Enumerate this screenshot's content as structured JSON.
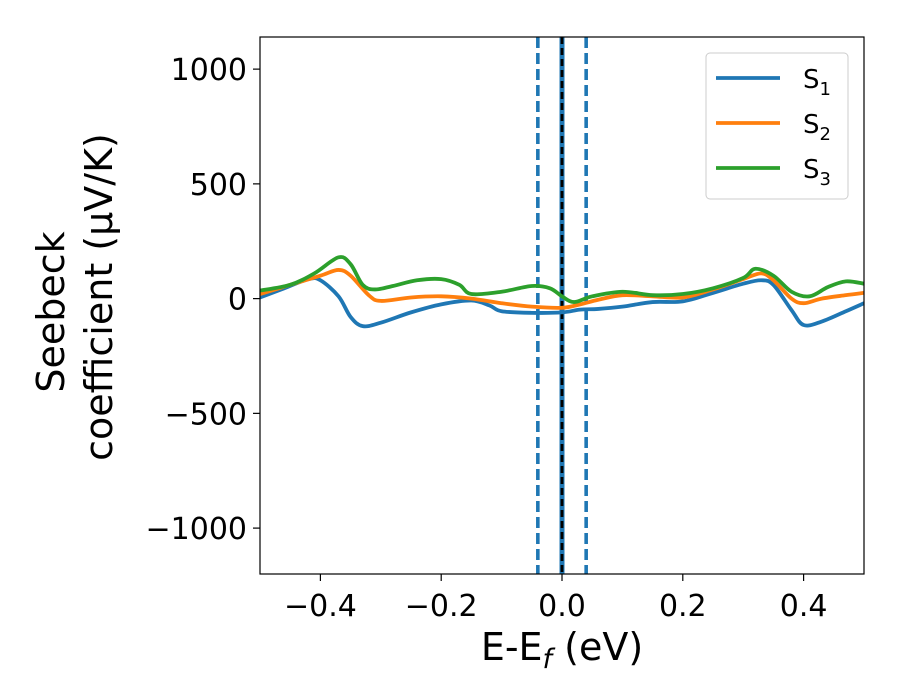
{
  "chart_data": {
    "type": "line",
    "xlabel": "E-E_f (eV)",
    "xlabel_parts": {
      "main": "E-E",
      "sub": "f",
      "unit": " (eV)"
    },
    "ylabel_lines": [
      "Seebeck",
      "coefficient  (μV/K)"
    ],
    "xlim": [
      -0.5,
      0.5
    ],
    "ylim": [
      -1200,
      1140
    ],
    "xticks": [
      -0.4,
      -0.2,
      0.0,
      0.2,
      0.4
    ],
    "xtick_labels": [
      "−0.4",
      "−0.2",
      "0.0",
      "0.2",
      "0.4"
    ],
    "yticks": [
      1000,
      500,
      0,
      -500,
      -1000
    ],
    "ytick_labels": [
      "1000",
      "500",
      "0",
      "−500",
      "−1000"
    ],
    "grid": false,
    "legend_position": "top-right",
    "vlines": [
      {
        "x": -0.04,
        "style": "dashed",
        "color": "#1f77b4"
      },
      {
        "x": 0.04,
        "style": "dashed",
        "color": "#1f77b4"
      },
      {
        "x": 0.0,
        "style": "solid",
        "color": "#1f77b4"
      },
      {
        "x": 0.0,
        "style": "dashed",
        "color": "#000000"
      }
    ],
    "series": [
      {
        "name": "S1",
        "label_main": "S",
        "label_sub": "1",
        "color": "#1f77b4",
        "points": [
          [
            -0.5,
            5
          ],
          [
            -0.46,
            45
          ],
          [
            -0.42,
            85
          ],
          [
            -0.4,
            80
          ],
          [
            -0.37,
            10
          ],
          [
            -0.35,
            -80
          ],
          [
            -0.33,
            -120
          ],
          [
            -0.3,
            -105
          ],
          [
            -0.25,
            -60
          ],
          [
            -0.2,
            -25
          ],
          [
            -0.15,
            -8
          ],
          [
            -0.12,
            -30
          ],
          [
            -0.1,
            -55
          ],
          [
            -0.05,
            -62
          ],
          [
            0.0,
            -60
          ],
          [
            0.03,
            -48
          ],
          [
            0.06,
            -45
          ],
          [
            0.1,
            -35
          ],
          [
            0.15,
            -15
          ],
          [
            0.2,
            -12
          ],
          [
            0.25,
            25
          ],
          [
            0.3,
            65
          ],
          [
            0.33,
            80
          ],
          [
            0.35,
            60
          ],
          [
            0.38,
            -50
          ],
          [
            0.4,
            -115
          ],
          [
            0.43,
            -100
          ],
          [
            0.47,
            -55
          ],
          [
            0.5,
            -20
          ]
        ]
      },
      {
        "name": "S2",
        "label_main": "S",
        "label_sub": "2",
        "color": "#ff7f0e",
        "points": [
          [
            -0.5,
            20
          ],
          [
            -0.45,
            60
          ],
          [
            -0.4,
            100
          ],
          [
            -0.37,
            125
          ],
          [
            -0.35,
            100
          ],
          [
            -0.32,
            15
          ],
          [
            -0.3,
            -10
          ],
          [
            -0.25,
            5
          ],
          [
            -0.2,
            10
          ],
          [
            -0.15,
            0
          ],
          [
            -0.1,
            -20
          ],
          [
            -0.05,
            -35
          ],
          [
            0.0,
            -40
          ],
          [
            0.03,
            -25
          ],
          [
            0.06,
            -5
          ],
          [
            0.1,
            15
          ],
          [
            0.15,
            10
          ],
          [
            0.2,
            5
          ],
          [
            0.25,
            40
          ],
          [
            0.3,
            85
          ],
          [
            0.33,
            110
          ],
          [
            0.35,
            80
          ],
          [
            0.38,
            0
          ],
          [
            0.4,
            -20
          ],
          [
            0.43,
            0
          ],
          [
            0.47,
            15
          ],
          [
            0.5,
            25
          ]
        ]
      },
      {
        "name": "S3",
        "label_main": "S",
        "label_sub": "3",
        "color": "#2ca02c",
        "points": [
          [
            -0.5,
            35
          ],
          [
            -0.45,
            60
          ],
          [
            -0.41,
            110
          ],
          [
            -0.37,
            180
          ],
          [
            -0.35,
            150
          ],
          [
            -0.33,
            60
          ],
          [
            -0.31,
            40
          ],
          [
            -0.28,
            55
          ],
          [
            -0.24,
            80
          ],
          [
            -0.2,
            85
          ],
          [
            -0.17,
            60
          ],
          [
            -0.15,
            20
          ],
          [
            -0.1,
            30
          ],
          [
            -0.05,
            55
          ],
          [
            -0.02,
            45
          ],
          [
            0.0,
            10
          ],
          [
            0.02,
            -15
          ],
          [
            0.05,
            10
          ],
          [
            0.1,
            30
          ],
          [
            0.15,
            15
          ],
          [
            0.2,
            20
          ],
          [
            0.25,
            45
          ],
          [
            0.3,
            90
          ],
          [
            0.32,
            130
          ],
          [
            0.35,
            100
          ],
          [
            0.38,
            30
          ],
          [
            0.41,
            10
          ],
          [
            0.44,
            50
          ],
          [
            0.47,
            75
          ],
          [
            0.5,
            65
          ]
        ]
      }
    ]
  }
}
